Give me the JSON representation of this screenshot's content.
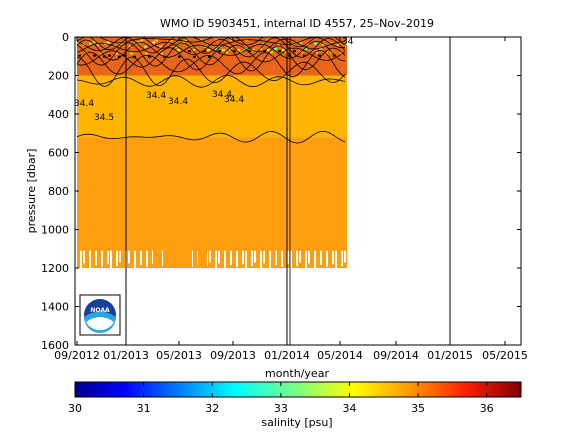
{
  "chart_data": {
    "type": "heatmap",
    "title": "WMO ID 5903451, internal ID 4557, 25–Nov–2019",
    "xlabel": "month/year",
    "ylabel": "pressure [dbar]",
    "x_tick_labels": [
      "09/2012",
      "01/2013",
      "05/2013",
      "09/2013",
      "01/2014",
      "05/2014",
      "09/2014",
      "01/2015",
      "05/2015"
    ],
    "y_ticks": [
      0,
      200,
      400,
      600,
      800,
      1000,
      1200,
      1400,
      1600
    ],
    "ylim": [
      1600,
      0
    ],
    "y_inverted": true,
    "vertical_lines": [
      "01/2013",
      "01/2014",
      "01/2015"
    ],
    "data_extent": {
      "start": "09/2012",
      "end": "05/2014"
    },
    "bottom_depth_range": [
      1100,
      1200
    ],
    "layers": [
      {
        "pressure_range": [
          0,
          200
        ],
        "salinity_range": [
          34.0,
          34.8
        ],
        "color": "#e8651a"
      },
      {
        "pressure_range": [
          200,
          520
        ],
        "salinity": 34.4,
        "color": "#ffb400"
      },
      {
        "pressure_range": [
          520,
          1200
        ],
        "salinity": 34.6,
        "color": "#ff9e0f"
      }
    ],
    "contour_labels": [
      "34.4",
      "34.5",
      "34.4",
      "34.4",
      "34.4",
      "34.4",
      "34"
    ],
    "colorbar": {
      "label": "salinity [psu]",
      "range": [
        30,
        36.5
      ],
      "ticks": [
        "30",
        "31",
        "32",
        "33",
        "34",
        "35",
        "36"
      ],
      "colormap": "jet"
    },
    "logo": {
      "text": "NOAA"
    },
    "grid": false,
    "legend": "none"
  }
}
